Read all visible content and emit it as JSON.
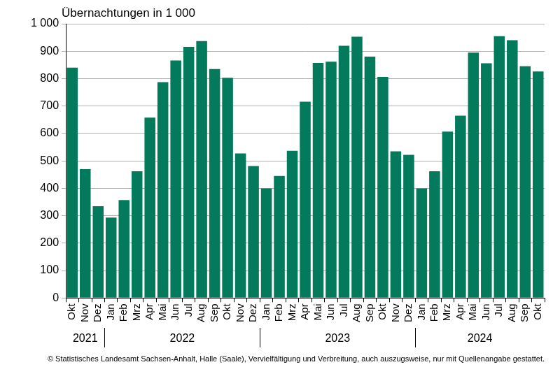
{
  "chart_data": {
    "type": "bar",
    "title": "Übernachtungen in 1 000",
    "footnote": "© Statistisches Landesamt Sachsen-Anhalt, Halle (Saale), Vervielfältigung und Verbreitung, auch auszugsweise, nur mit Quellenangabe gestattet.",
    "categories": [
      "Okt",
      "Nov",
      "Dez",
      "Jan",
      "Feb",
      "Mrz",
      "Apr",
      "Mai",
      "Jun",
      "Jul",
      "Aug",
      "Sep",
      "Okt",
      "Nov",
      "Dez",
      "Jan",
      "Feb",
      "Mrz",
      "Apr",
      "Mai",
      "Jun",
      "Jul",
      "Aug",
      "Sep",
      "Okt",
      "Nov",
      "Dez",
      "Jan",
      "Feb",
      "Mrz",
      "Apr",
      "Mai",
      "Jun",
      "Jul",
      "Aug",
      "Sep",
      "Okt"
    ],
    "x_groups": [
      {
        "label": "2021",
        "size": 3
      },
      {
        "label": "2022",
        "size": 12
      },
      {
        "label": "2023",
        "size": 12
      },
      {
        "label": "2024",
        "size": 10
      }
    ],
    "values": [
      840,
      470,
      335,
      293,
      357,
      462,
      658,
      787,
      866,
      916,
      937,
      835,
      803,
      527,
      481,
      400,
      445,
      537,
      716,
      857,
      862,
      920,
      953,
      880,
      806,
      535,
      522,
      400,
      462,
      607,
      665,
      895,
      856,
      955,
      940,
      845,
      826
    ],
    "color": "#037a5c",
    "ylim": [
      0,
      1000
    ],
    "yticks": [
      0,
      100,
      200,
      300,
      400,
      500,
      600,
      700,
      800,
      900,
      {
        "value": 1000,
        "label": "1 000"
      }
    ],
    "grid": true
  }
}
